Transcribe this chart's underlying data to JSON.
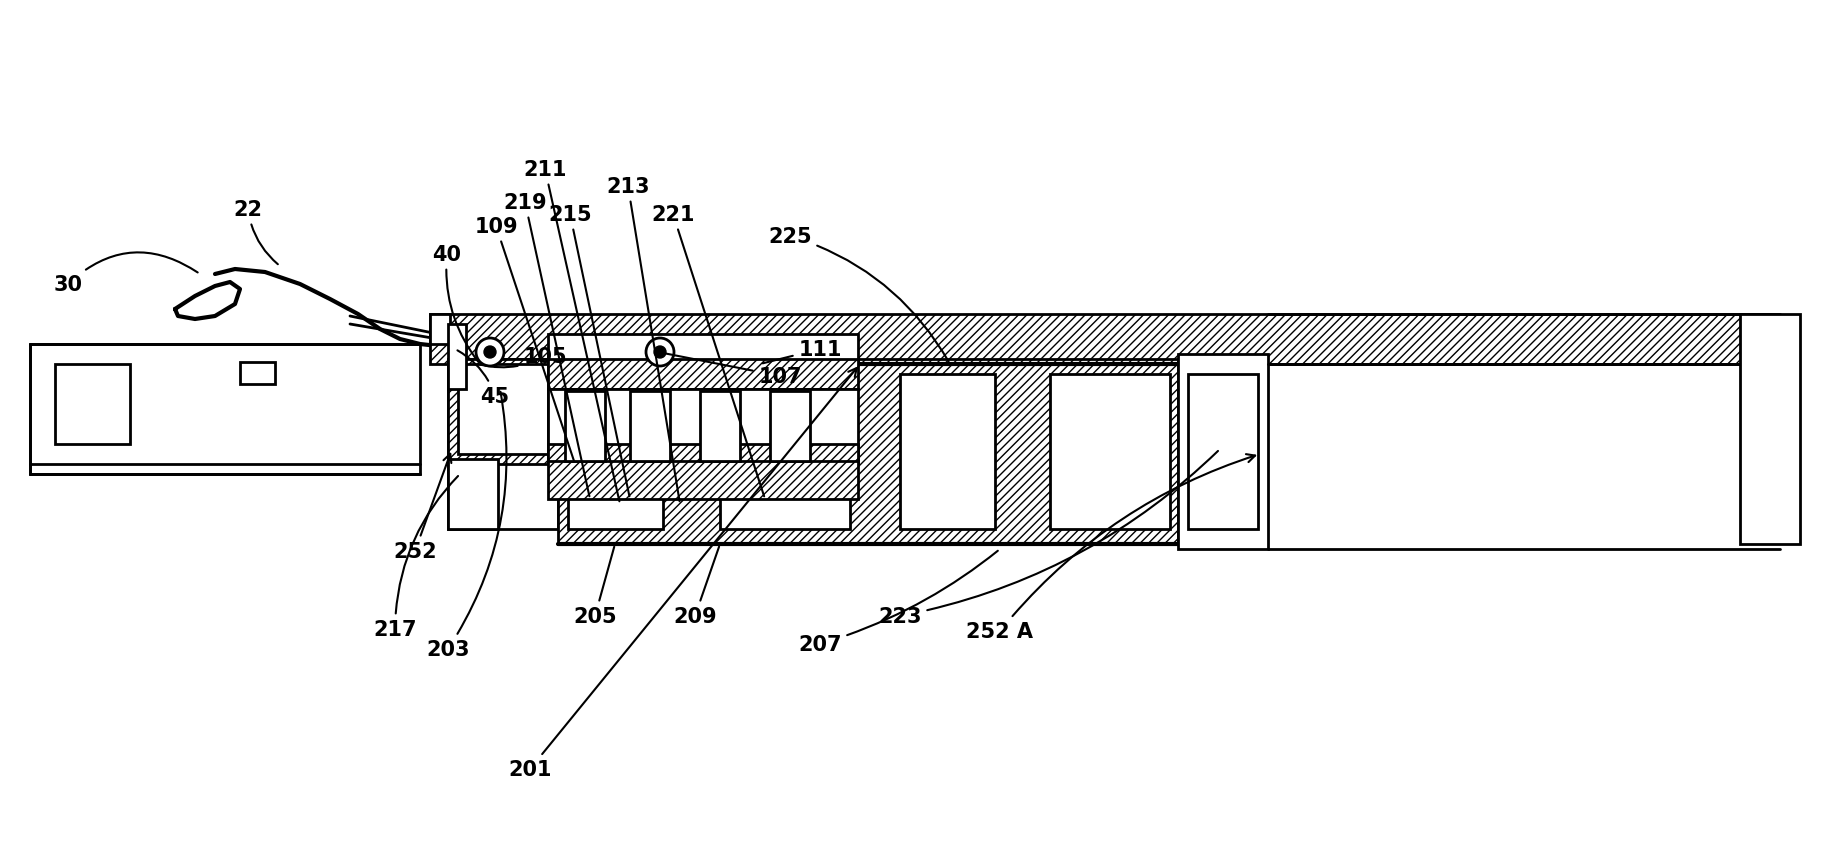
{
  "bg_color": "#ffffff",
  "lc": "#000000",
  "lw": 2.0,
  "fs": 15,
  "fig_w": 18.38,
  "fig_h": 8.45,
  "xlim": [
    0,
    1838
  ],
  "ylim": [
    0,
    845
  ]
}
